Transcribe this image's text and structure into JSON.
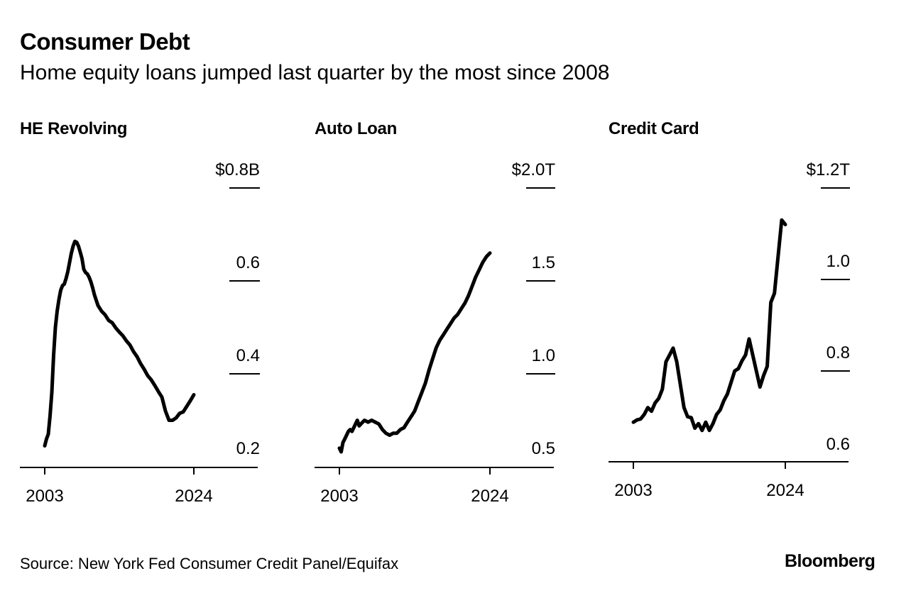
{
  "header": {
    "title": "Consumer Debt",
    "subtitle": "Home equity loans jumped last quarter by the most since 2008"
  },
  "footer": {
    "source": "Source: New York Fed Consumer Credit Panel/Equifax",
    "brand": "Bloomberg"
  },
  "chart_data": [
    {
      "type": "line",
      "title": "HE Revolving",
      "unit_prefix": "$",
      "unit_suffix": "B",
      "ylim": [
        0.2,
        0.8
      ],
      "yticks": [
        0.2,
        0.4,
        0.6,
        0.8
      ],
      "ytick_labels": [
        "0.2",
        "0.4",
        "0.6",
        "$0.8B"
      ],
      "xlim": [
        2003,
        2024
      ],
      "xticks": [
        2003,
        2024
      ],
      "xtick_labels": [
        "2003",
        "2024"
      ],
      "grid": "tick-marks-right",
      "x": [
        2003.0,
        2003.25,
        2003.5,
        2003.75,
        2004.0,
        2004.25,
        2004.5,
        2004.75,
        2005.0,
        2005.25,
        2005.5,
        2005.75,
        2006.0,
        2006.25,
        2006.5,
        2006.75,
        2007.0,
        2007.25,
        2007.5,
        2007.75,
        2008.0,
        2008.25,
        2008.5,
        2008.75,
        2009.0,
        2009.25,
        2009.5,
        2009.75,
        2010.0,
        2010.5,
        2011.0,
        2011.5,
        2012.0,
        2012.5,
        2013.0,
        2013.5,
        2014.0,
        2014.5,
        2015.0,
        2015.5,
        2016.0,
        2016.5,
        2017.0,
        2017.5,
        2018.0,
        2018.5,
        2019.0,
        2019.5,
        2020.0,
        2020.5,
        2021.0,
        2021.5,
        2022.0,
        2022.5,
        2023.0,
        2023.5,
        2024.0
      ],
      "series": [
        {
          "values": [
            0.245,
            0.26,
            0.27,
            0.31,
            0.36,
            0.44,
            0.5,
            0.535,
            0.56,
            0.58,
            0.59,
            0.593,
            0.605,
            0.62,
            0.64,
            0.66,
            0.675,
            0.685,
            0.683,
            0.675,
            0.662,
            0.648,
            0.625,
            0.618,
            0.615,
            0.608,
            0.598,
            0.585,
            0.57,
            0.547,
            0.535,
            0.527,
            0.515,
            0.51,
            0.499,
            0.49,
            0.482,
            0.471,
            0.462,
            0.448,
            0.437,
            0.422,
            0.41,
            0.396,
            0.387,
            0.375,
            0.362,
            0.35,
            0.32,
            0.3,
            0.3,
            0.305,
            0.315,
            0.318,
            0.33,
            0.342,
            0.355
          ]
        }
      ]
    },
    {
      "type": "line",
      "title": "Auto Loan",
      "unit_prefix": "$",
      "unit_suffix": "T",
      "ylim": [
        0.5,
        2.0
      ],
      "yticks": [
        0.5,
        1.0,
        1.5,
        2.0
      ],
      "ytick_labels": [
        "0.5",
        "1.0",
        "1.5",
        "$2.0T"
      ],
      "xlim": [
        2003,
        2024
      ],
      "xticks": [
        2003,
        2024
      ],
      "xtick_labels": [
        "2003",
        "2024"
      ],
      "grid": "tick-marks-right",
      "x": [
        2003.0,
        2003.25,
        2003.5,
        2003.75,
        2004.0,
        2004.25,
        2004.5,
        2004.75,
        2005.0,
        2005.25,
        2005.5,
        2005.75,
        2006.0,
        2006.5,
        2007.0,
        2007.5,
        2008.0,
        2008.5,
        2009.0,
        2009.5,
        2010.0,
        2010.5,
        2011.0,
        2011.5,
        2012.0,
        2012.5,
        2013.0,
        2013.5,
        2014.0,
        2014.5,
        2015.0,
        2015.5,
        2016.0,
        2016.5,
        2017.0,
        2017.5,
        2018.0,
        2018.5,
        2019.0,
        2019.5,
        2020.0,
        2020.5,
        2021.0,
        2021.5,
        2022.0,
        2022.5,
        2023.0,
        2023.5,
        2024.0
      ],
      "series": [
        {
          "values": [
            0.6,
            0.58,
            0.63,
            0.65,
            0.67,
            0.69,
            0.7,
            0.69,
            0.71,
            0.73,
            0.75,
            0.72,
            0.73,
            0.75,
            0.74,
            0.75,
            0.74,
            0.73,
            0.7,
            0.68,
            0.67,
            0.68,
            0.68,
            0.7,
            0.71,
            0.74,
            0.77,
            0.8,
            0.85,
            0.9,
            0.95,
            1.02,
            1.08,
            1.14,
            1.18,
            1.21,
            1.24,
            1.27,
            1.3,
            1.32,
            1.35,
            1.38,
            1.42,
            1.47,
            1.52,
            1.56,
            1.6,
            1.63,
            1.65
          ]
        }
      ]
    },
    {
      "type": "line",
      "title": "Credit Card",
      "unit_prefix": "$",
      "unit_suffix": "T",
      "ylim": [
        0.6,
        1.2
      ],
      "yticks": [
        0.6,
        0.8,
        1.0,
        1.2
      ],
      "ytick_labels": [
        "0.6",
        "0.8",
        "1.0",
        "$1.2T"
      ],
      "xlim": [
        2003,
        2024
      ],
      "xticks": [
        2003,
        2024
      ],
      "xtick_labels": [
        "2003",
        "2024"
      ],
      "grid": "tick-marks-right",
      "x": [
        2003.0,
        2003.5,
        2004.0,
        2004.5,
        2005.0,
        2005.5,
        2006.0,
        2006.5,
        2007.0,
        2007.5,
        2008.0,
        2008.5,
        2009.0,
        2009.5,
        2010.0,
        2010.5,
        2011.0,
        2011.5,
        2012.0,
        2012.5,
        2013.0,
        2013.5,
        2014.0,
        2014.5,
        2015.0,
        2015.5,
        2016.0,
        2016.5,
        2017.0,
        2017.5,
        2018.0,
        2018.5,
        2019.0,
        2019.5,
        2020.0,
        2020.5,
        2021.0,
        2021.5,
        2022.0,
        2022.5,
        2023.0,
        2023.5,
        2024.0
      ],
      "series": [
        {
          "values": [
            0.688,
            0.693,
            0.695,
            0.705,
            0.72,
            0.712,
            0.73,
            0.74,
            0.76,
            0.82,
            0.835,
            0.85,
            0.82,
            0.77,
            0.72,
            0.7,
            0.698,
            0.675,
            0.685,
            0.67,
            0.688,
            0.67,
            0.685,
            0.705,
            0.715,
            0.735,
            0.75,
            0.775,
            0.8,
            0.805,
            0.822,
            0.835,
            0.87,
            0.835,
            0.8,
            0.765,
            0.79,
            0.81,
            0.95,
            0.97,
            1.05,
            1.13,
            1.12
          ]
        }
      ]
    }
  ]
}
